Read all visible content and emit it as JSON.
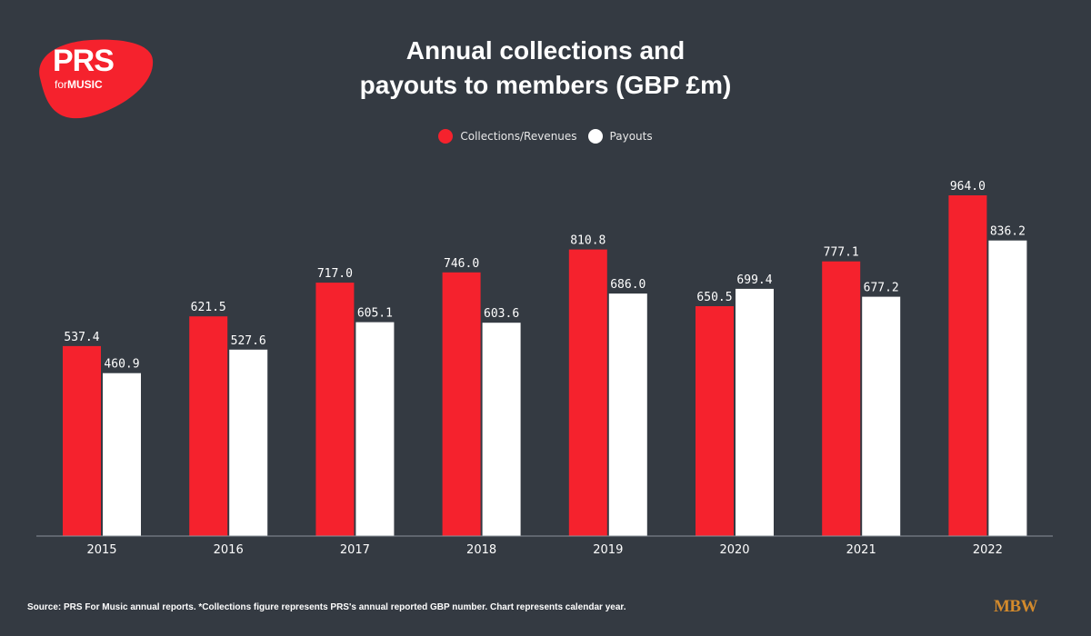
{
  "logo": {
    "main": "PRS",
    "sub_prefix": "for",
    "sub_main": "MUSIC"
  },
  "title_line1": "Annual collections and",
  "title_line2": "payouts to members (GBP £m)",
  "footer": {
    "source": "Source: PRS For Music annual reports. *Collections figure represents PRS's annual reported GBP number. Chart represents calendar year.",
    "brand": "MBW"
  },
  "colors": {
    "collections": "#f5222d",
    "payouts": "#ffffff",
    "background": "#343a42",
    "brand": "#d38a2c"
  },
  "chart_data": {
    "type": "bar",
    "categories": [
      "2015",
      "2016",
      "2017",
      "2018",
      "2019",
      "2020",
      "2021",
      "2022"
    ],
    "series": [
      {
        "name": "Collections/Revenues",
        "color": "#f5222d",
        "values": [
          537.4,
          621.5,
          717.0,
          746.0,
          810.8,
          650.5,
          777.1,
          964.0
        ],
        "labels": [
          "537.4",
          "621.5",
          "717.0",
          "746.0",
          "810.8",
          "650.5",
          "777.1",
          "964.0"
        ]
      },
      {
        "name": "Payouts",
        "color": "#ffffff",
        "values": [
          460.9,
          527.6,
          605.1,
          603.6,
          686.0,
          699.4,
          677.2,
          836.2
        ],
        "labels": [
          "460.9",
          "527.6",
          "605.1",
          "603.6",
          "686.0",
          "699.4",
          "677.2",
          "836.2"
        ]
      }
    ],
    "ylim": [
      0,
      964
    ],
    "grid": false,
    "legend_position": "top-center"
  }
}
